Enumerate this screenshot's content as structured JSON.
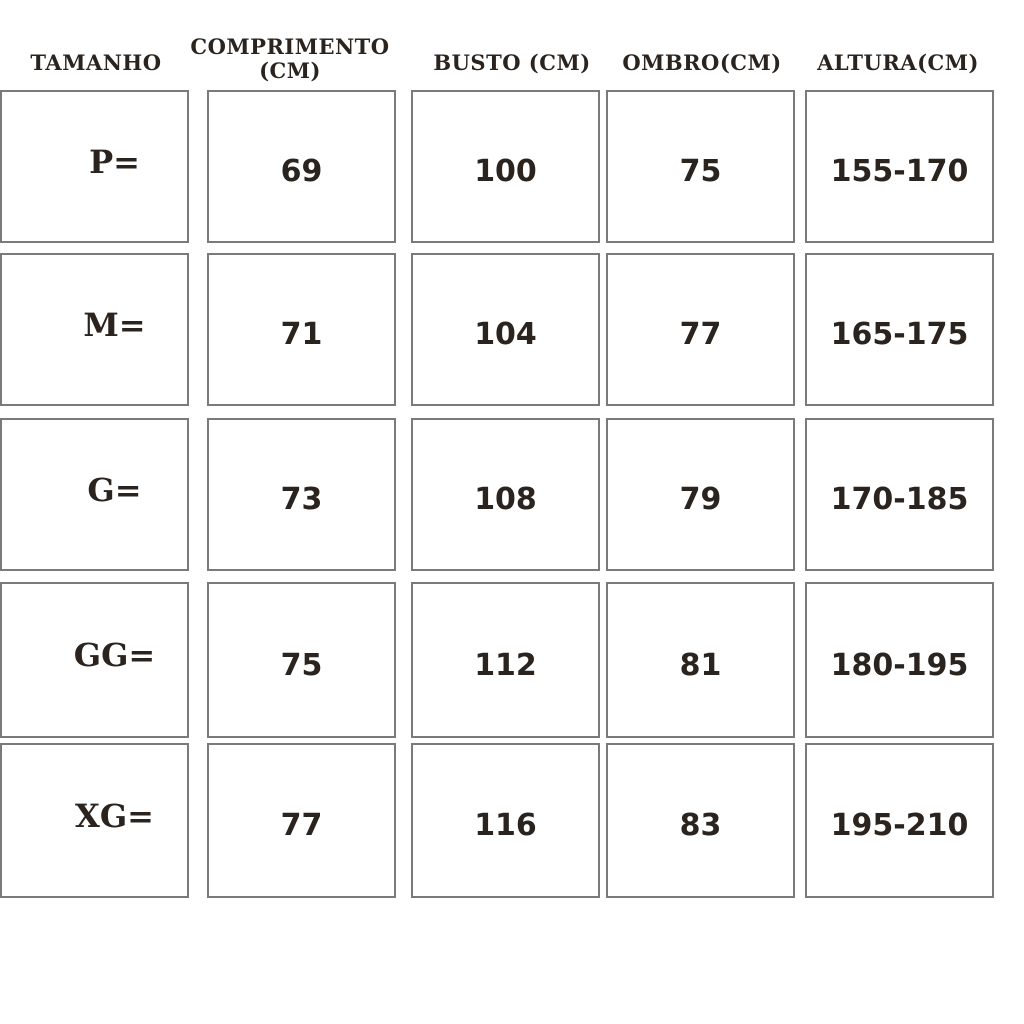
{
  "headers": {
    "size": "TAMANHO",
    "length_line1": "COMPRIMENTO",
    "length_line2": "(CM)",
    "bust": "BUSTO (CM)",
    "shoulder": "OMBRO(CM)",
    "height": "ALTURA(CM)"
  },
  "rows": [
    {
      "size": "P=",
      "length": "69",
      "bust": "100",
      "shoulder": "75",
      "height": "155-170"
    },
    {
      "size": "M=",
      "length": "71",
      "bust": "104",
      "shoulder": "77",
      "height": "165-175"
    },
    {
      "size": "G=",
      "length": "73",
      "bust": "108",
      "shoulder": "79",
      "height": "170-185"
    },
    {
      "size": "GG=",
      "length": "75",
      "bust": "112",
      "shoulder": "81",
      "height": "180-195"
    },
    {
      "size": "XG=",
      "length": "77",
      "bust": "116",
      "shoulder": "83",
      "height": "195-210"
    }
  ]
}
